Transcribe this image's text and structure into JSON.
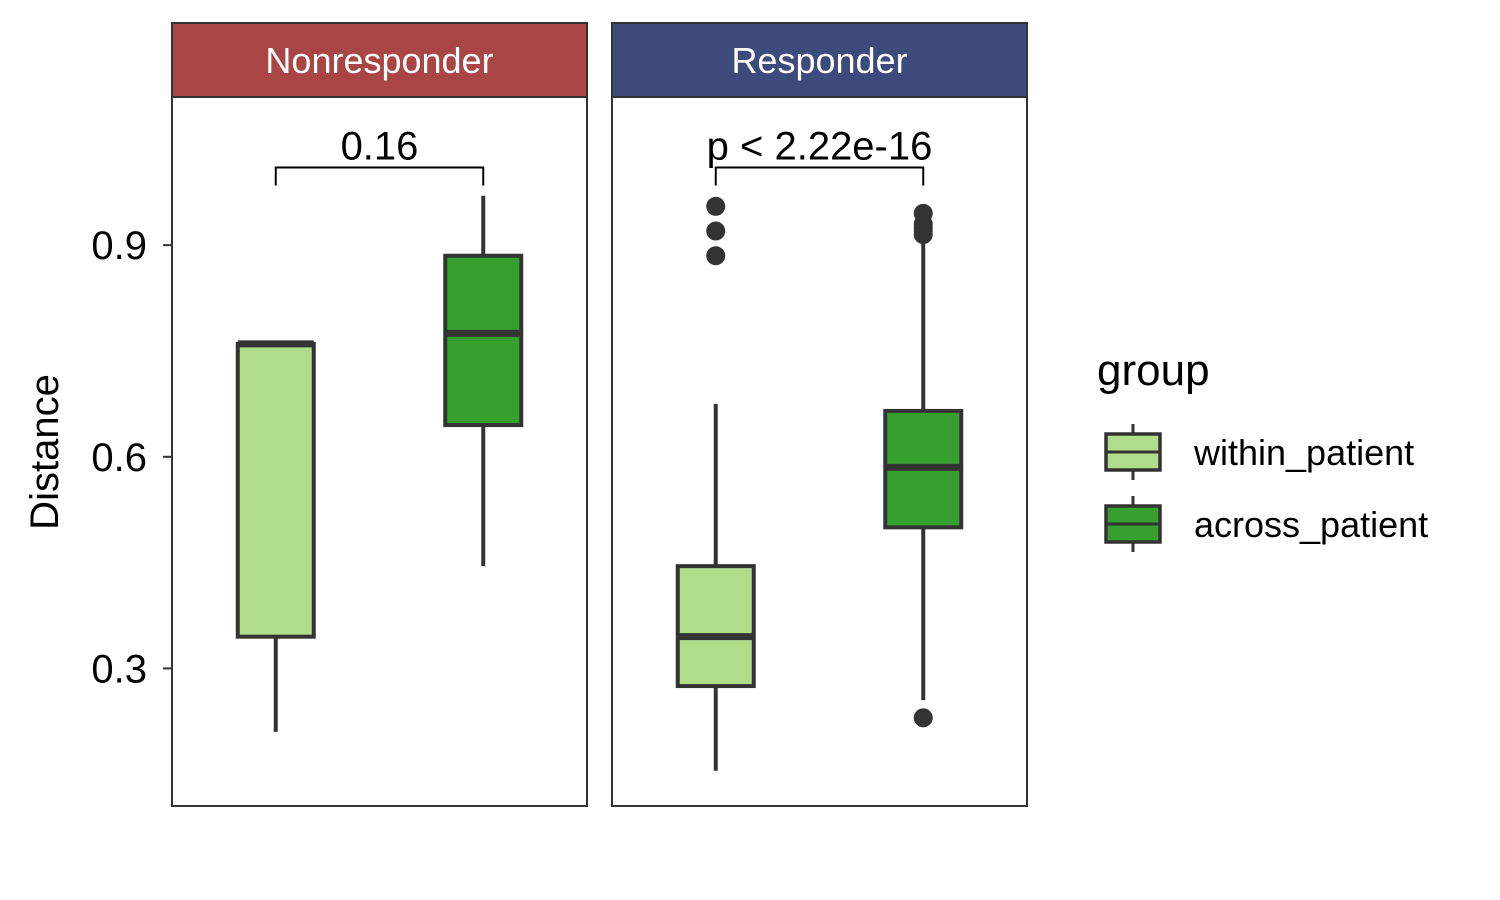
{
  "chart_data": {
    "type": "boxplot",
    "ylabel": "Distance",
    "ylim": [
      0.105,
      1.11
    ],
    "y_ticks": [
      0.3,
      0.6,
      0.9
    ],
    "y_tick_labels": [
      "0.3",
      "0.6",
      "0.9"
    ],
    "grid": false,
    "legend": {
      "title": "group",
      "position": "right",
      "entries": [
        "within_patient",
        "across_patient"
      ],
      "colors": [
        "#b0dd8a",
        "#36a02e"
      ]
    },
    "panels": [
      {
        "label": "Nonresponder",
        "strip_color": "#a94545",
        "pvalue_label": "0.16",
        "bracket_y": 1.01,
        "boxes": [
          {
            "group": "within_patient",
            "whisker_low": 0.21,
            "q1": 0.345,
            "median": 0.76,
            "q3": 0.76,
            "whisker_high": 0.76,
            "outliers": []
          },
          {
            "group": "across_patient",
            "whisker_low": 0.445,
            "q1": 0.645,
            "median": 0.775,
            "q3": 0.885,
            "whisker_high": 0.97,
            "outliers": []
          }
        ]
      },
      {
        "label": "Responder",
        "strip_color": "#3d4a7c",
        "pvalue_label": "p < 2.22e-16",
        "bracket_y": 1.01,
        "boxes": [
          {
            "group": "within_patient",
            "whisker_low": 0.155,
            "q1": 0.275,
            "median": 0.345,
            "q3": 0.445,
            "whisker_high": 0.675,
            "outliers": [
              0.885,
              0.92,
              0.955
            ]
          },
          {
            "group": "across_patient",
            "whisker_low": 0.255,
            "q1": 0.5,
            "median": 0.585,
            "q3": 0.665,
            "whisker_high": 0.91,
            "outliers": [
              0.23,
              0.915,
              0.92,
              0.925,
              0.93,
              0.945
            ]
          }
        ]
      }
    ]
  }
}
